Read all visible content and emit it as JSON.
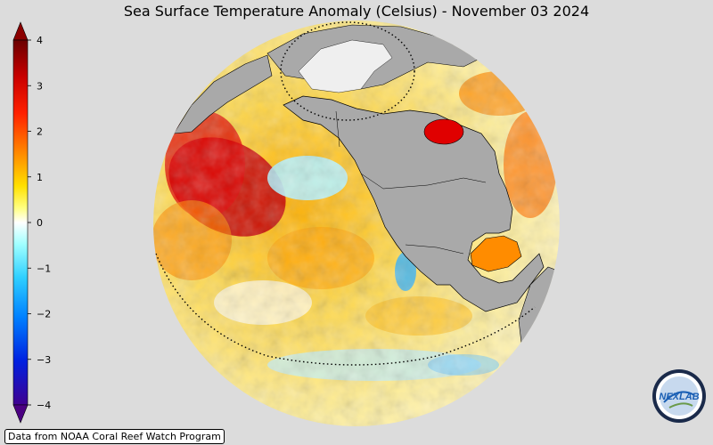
{
  "title": "Sea Surface Temperature Anomaly (Celsius) - November 03 2024",
  "colorbar": {
    "ticks": [
      "4",
      "3",
      "2",
      "1",
      "0",
      "−1",
      "−2",
      "−3",
      "−4"
    ],
    "colors": [
      "#6a0000",
      "#c80000",
      "#ff3000",
      "#ff9000",
      "#ffd000",
      "#ffff40",
      "#ffffff",
      "#60ffff",
      "#00b0f0",
      "#0050ff",
      "#2000c0",
      "#50009a"
    ]
  },
  "map": {
    "ocean_base": "#ffe680",
    "land_color": "#a9a9a9",
    "ice_color": "#efefef"
  },
  "credit": "Data from NOAA Coral Reef Watch Program",
  "logo": {
    "text": "NEXLAB"
  }
}
